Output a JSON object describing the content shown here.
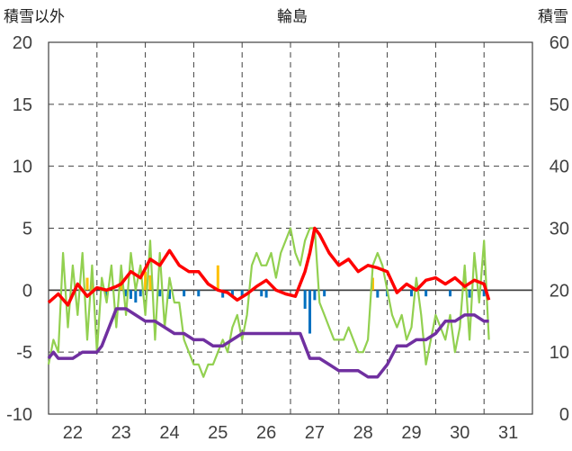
{
  "chart_data": {
    "type": "line",
    "title": "輪島",
    "ylabel_left": "積雪以外",
    "ylabel_right": "積雪",
    "x_ticks": [
      "22",
      "23",
      "24",
      "25",
      "26",
      "27",
      "28",
      "29",
      "30",
      "31"
    ],
    "x_range": [
      21.5,
      31.5
    ],
    "y_left_range": [
      -10,
      20
    ],
    "y_left_ticks": [
      "20",
      "15",
      "10",
      "5",
      "0",
      "-5",
      "-10"
    ],
    "y_right_range": [
      0,
      60
    ],
    "y_right_ticks": [
      "60",
      "50",
      "40",
      "30",
      "20",
      "10",
      "0"
    ],
    "grid": "dashed-vertical-and-horizontal",
    "colors": {
      "temperature": "#ff0000",
      "snow_depth": "#7030a0",
      "wind": "#92d050",
      "precip": "#ffc000",
      "negative_bar": "#0070c0",
      "grid": "#404040"
    },
    "series": [
      {
        "axis": "left",
        "color": "#ff0000",
        "x": [
          21.5,
          21.7,
          21.9,
          22.1,
          22.3,
          22.5,
          22.7,
          22.9,
          23.0,
          23.2,
          23.4,
          23.6,
          23.8,
          24.0,
          24.2,
          24.4,
          24.6,
          24.8,
          25.0,
          25.2,
          25.4,
          25.6,
          25.8,
          26.0,
          26.2,
          26.4,
          26.6,
          26.8,
          26.9,
          27.0,
          27.1,
          27.3,
          27.5,
          27.7,
          27.9,
          28.1,
          28.3,
          28.5,
          28.7,
          28.9,
          29.1,
          29.3,
          29.5,
          29.7,
          29.9,
          30.1,
          30.3,
          30.5,
          30.6
        ],
        "y": [
          -1.0,
          -0.3,
          -1.2,
          0.5,
          -0.5,
          0.2,
          0.0,
          0.3,
          0.5,
          1.5,
          1.0,
          2.5,
          2.0,
          3.2,
          2.0,
          1.5,
          1.5,
          0.5,
          0.0,
          -0.2,
          -0.8,
          -0.3,
          0.3,
          0.8,
          0.0,
          -0.3,
          -0.5,
          1.5,
          3.0,
          5.0,
          4.5,
          3.0,
          2.0,
          2.5,
          1.5,
          2.0,
          1.8,
          1.5,
          -0.2,
          0.5,
          0.0,
          0.8,
          1.0,
          0.5,
          1.0,
          0.3,
          0.8,
          0.5,
          -0.8
        ]
      },
      {
        "axis": "right",
        "color": "#7030a0",
        "x": [
          21.5,
          21.6,
          21.7,
          22.0,
          22.2,
          22.4,
          22.5,
          22.6,
          22.7,
          22.9,
          23.1,
          23.3,
          23.5,
          23.7,
          23.9,
          24.1,
          24.3,
          24.5,
          24.7,
          24.9,
          25.1,
          25.3,
          25.5,
          25.7,
          25.9,
          26.1,
          26.3,
          26.5,
          26.7,
          26.9,
          27.1,
          27.3,
          27.5,
          27.7,
          27.9,
          28.1,
          28.3,
          28.5,
          28.7,
          28.9,
          29.1,
          29.3,
          29.5,
          29.7,
          29.9,
          30.1,
          30.3,
          30.5,
          30.6
        ],
        "y": [
          9,
          10,
          9,
          9,
          10,
          10,
          10,
          11,
          13,
          17,
          17,
          16,
          15,
          15,
          14,
          13,
          13,
          12,
          12,
          11,
          11,
          12,
          13,
          13,
          13,
          13,
          13,
          13,
          13,
          9,
          9,
          8,
          7,
          7,
          7,
          6,
          6,
          8,
          11,
          11,
          12,
          12,
          13,
          15,
          15,
          16,
          16,
          15,
          15
        ]
      },
      {
        "axis": "left",
        "color": "#92d050",
        "x": [
          21.5,
          21.6,
          21.7,
          21.8,
          21.9,
          22.0,
          22.1,
          22.2,
          22.3,
          22.4,
          22.5,
          22.6,
          22.7,
          22.8,
          22.9,
          23.0,
          23.1,
          23.2,
          23.3,
          23.4,
          23.5,
          23.6,
          23.7,
          23.8,
          23.9,
          24.0,
          24.1,
          24.2,
          24.3,
          24.4,
          24.5,
          24.6,
          24.7,
          24.8,
          24.9,
          25.0,
          25.1,
          25.2,
          25.3,
          25.4,
          25.5,
          25.6,
          25.7,
          25.8,
          25.9,
          26.0,
          26.1,
          26.2,
          26.3,
          26.4,
          26.5,
          26.6,
          26.7,
          26.8,
          26.9,
          27.0,
          27.1,
          27.2,
          27.3,
          27.4,
          27.5,
          27.6,
          27.7,
          27.8,
          27.9,
          28.0,
          28.1,
          28.2,
          28.3,
          28.4,
          28.5,
          28.6,
          28.7,
          28.8,
          28.9,
          29.0,
          29.1,
          29.2,
          29.3,
          29.4,
          29.5,
          29.6,
          29.7,
          29.8,
          29.9,
          30.0,
          30.1,
          30.2,
          30.3,
          30.4,
          30.5,
          30.6
        ],
        "y": [
          -6,
          -4,
          -5,
          3,
          -3,
          2,
          -2,
          3,
          -4,
          2,
          -5,
          1,
          -1,
          2,
          -3,
          2,
          -2,
          3,
          0,
          2,
          -2,
          4,
          -4,
          3,
          -3,
          1,
          -1,
          -1,
          -4,
          -5,
          -6,
          -6,
          -7,
          -6,
          -6,
          -5,
          -4,
          -5,
          -3,
          -2,
          -4,
          -2,
          2,
          3,
          2,
          2,
          3,
          1,
          3,
          4,
          5,
          3,
          2,
          4,
          5,
          5,
          -1,
          -2,
          -3,
          -4,
          -4,
          -4,
          -3,
          -4,
          -5,
          -5,
          -4,
          2,
          3,
          2,
          0,
          -2,
          -3,
          -2,
          -4,
          -3,
          1,
          -2,
          -6,
          -4,
          -2,
          -3,
          -4,
          -2,
          -5,
          -3,
          2,
          -4,
          3,
          -1,
          4,
          -4
        ]
      }
    ],
    "bars_left_axis": [
      {
        "x": 22.3,
        "y": 1.0,
        "color": "#ffc000"
      },
      {
        "x": 22.4,
        "y": 0.8,
        "color": "#ffc000"
      },
      {
        "x": 22.7,
        "y": -0.5,
        "color": "#0070c0"
      },
      {
        "x": 23.0,
        "y": 1.3,
        "color": "#ffc000"
      },
      {
        "x": 23.1,
        "y": -0.5,
        "color": "#0070c0"
      },
      {
        "x": 23.2,
        "y": -0.7,
        "color": "#0070c0"
      },
      {
        "x": 23.3,
        "y": -1.0,
        "color": "#0070c0"
      },
      {
        "x": 23.4,
        "y": -0.5,
        "color": "#0070c0"
      },
      {
        "x": 23.5,
        "y": 1.5,
        "color": "#ffc000"
      },
      {
        "x": 23.6,
        "y": 1.2,
        "color": "#ffc000"
      },
      {
        "x": 23.8,
        "y": -0.5,
        "color": "#0070c0"
      },
      {
        "x": 24.0,
        "y": -0.7,
        "color": "#0070c0"
      },
      {
        "x": 24.3,
        "y": -0.5,
        "color": "#0070c0"
      },
      {
        "x": 24.6,
        "y": -0.5,
        "color": "#0070c0"
      },
      {
        "x": 25.0,
        "y": 2.0,
        "color": "#ffc000"
      },
      {
        "x": 25.1,
        "y": -0.6,
        "color": "#0070c0"
      },
      {
        "x": 25.3,
        "y": -0.5,
        "color": "#0070c0"
      },
      {
        "x": 25.5,
        "y": -0.5,
        "color": "#0070c0"
      },
      {
        "x": 25.9,
        "y": -0.5,
        "color": "#0070c0"
      },
      {
        "x": 26.0,
        "y": -0.6,
        "color": "#0070c0"
      },
      {
        "x": 26.8,
        "y": -1.5,
        "color": "#0070c0"
      },
      {
        "x": 26.9,
        "y": -3.5,
        "color": "#0070c0"
      },
      {
        "x": 27.0,
        "y": -0.8,
        "color": "#0070c0"
      },
      {
        "x": 27.2,
        "y": -0.5,
        "color": "#0070c0"
      },
      {
        "x": 28.2,
        "y": 1.0,
        "color": "#ffc000"
      },
      {
        "x": 28.3,
        "y": -0.6,
        "color": "#0070c0"
      },
      {
        "x": 28.5,
        "y": -0.5,
        "color": "#0070c0"
      },
      {
        "x": 29.0,
        "y": -0.5,
        "color": "#0070c0"
      },
      {
        "x": 29.3,
        "y": -0.5,
        "color": "#0070c0"
      },
      {
        "x": 29.8,
        "y": -0.5,
        "color": "#0070c0"
      },
      {
        "x": 30.1,
        "y": 1.5,
        "color": "#ffc000"
      },
      {
        "x": 30.2,
        "y": -0.6,
        "color": "#0070c0"
      },
      {
        "x": 30.5,
        "y": -0.5,
        "color": "#0070c0"
      }
    ]
  }
}
